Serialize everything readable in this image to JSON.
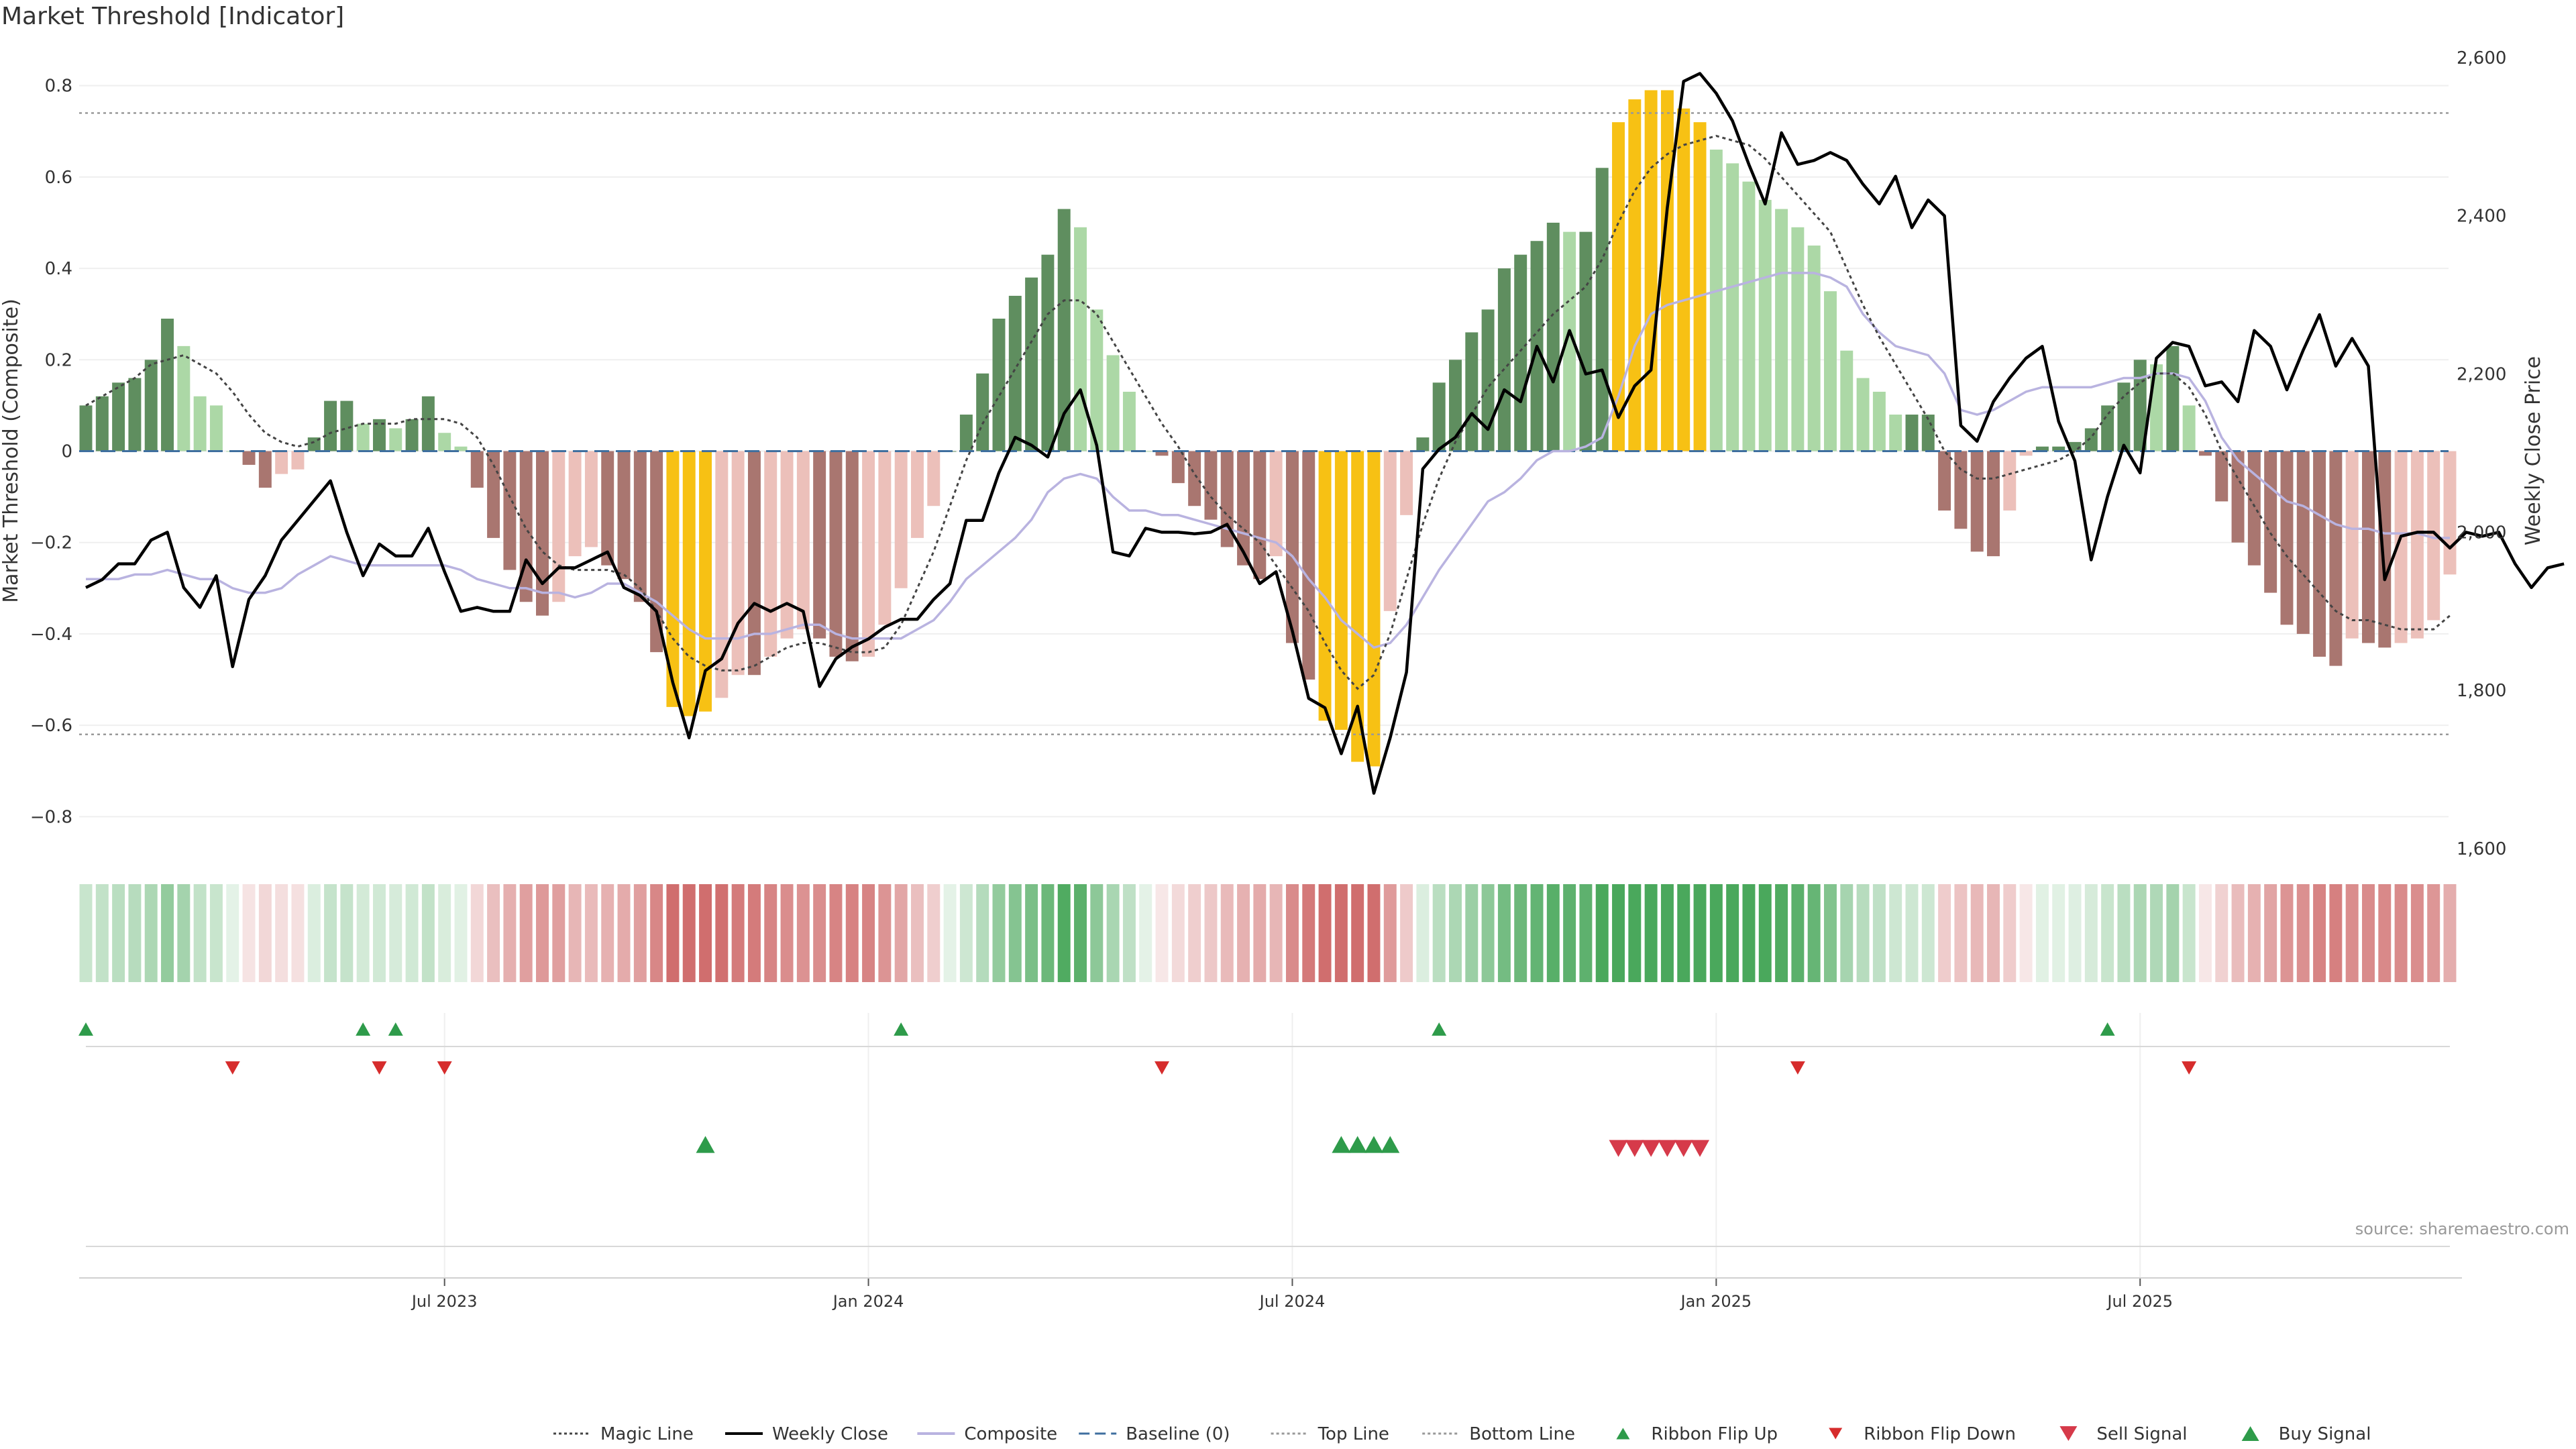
{
  "title": "Market Threshold [Indicator]",
  "source": "source: sharemaestro.com",
  "chart_data": {
    "type": "bar",
    "title": "Market Threshold [Indicator]",
    "ylabel_left": "Market Threshold (Composite)",
    "ylabel_right": "Weekly Close Price",
    "ylim_left": [
      -0.87,
      0.87
    ],
    "ylim_right": [
      1600,
      2605
    ],
    "yticks_left": [
      -0.8,
      -0.6,
      -0.4,
      -0.2,
      0,
      0.2,
      0.4,
      0.6,
      0.8
    ],
    "yticks_left_labels": [
      "−0.8",
      "−0.6",
      "−0.4",
      "−0.2",
      "0",
      "0.2",
      "0.4",
      "0.6",
      "0.8"
    ],
    "yticks_right": [
      1600,
      1800,
      2000,
      2200,
      2400,
      2600
    ],
    "yticks_right_labels": [
      "1,600",
      "1,800",
      "2,000",
      "2,200",
      "2,400",
      "2,600"
    ],
    "xticks": [
      22,
      48,
      74,
      100,
      126
    ],
    "xtick_labels": [
      "Jul 2023",
      "Jan 2024",
      "Jul 2024",
      "Jan 2025",
      "Jul 2025"
    ],
    "top_line": 0.74,
    "bottom_line": -0.62,
    "composite": [
      0.1,
      0.12,
      0.15,
      0.16,
      0.2,
      0.29,
      0.23,
      0.12,
      0.1,
      0.0,
      -0.03,
      -0.08,
      -0.05,
      -0.04,
      0.03,
      0.11,
      0.11,
      0.06,
      0.07,
      0.05,
      0.07,
      0.12,
      0.04,
      0.01,
      -0.08,
      -0.19,
      -0.26,
      -0.33,
      -0.36,
      -0.33,
      -0.23,
      -0.21,
      -0.25,
      -0.28,
      -0.33,
      -0.44,
      -0.56,
      -0.58,
      -0.57,
      -0.54,
      -0.49,
      -0.49,
      -0.45,
      -0.41,
      -0.39,
      -0.41,
      -0.45,
      -0.46,
      -0.45,
      -0.38,
      -0.3,
      -0.19,
      -0.12,
      0.0,
      0.08,
      0.17,
      0.29,
      0.34,
      0.38,
      0.43,
      0.53,
      0.49,
      0.31,
      0.21,
      0.13,
      0.0,
      -0.01,
      -0.07,
      -0.12,
      -0.15,
      -0.21,
      -0.25,
      -0.28,
      -0.23,
      -0.42,
      -0.5,
      -0.59,
      -0.61,
      -0.68,
      -0.69,
      -0.35,
      -0.14,
      0.03,
      0.15,
      0.2,
      0.26,
      0.31,
      0.4,
      0.43,
      0.46,
      0.5,
      0.48,
      0.48,
      0.62,
      0.72,
      0.77,
      0.79,
      0.79,
      0.75,
      0.72,
      0.66,
      0.63,
      0.59,
      0.55,
      0.53,
      0.49,
      0.45,
      0.35,
      0.22,
      0.16,
      0.13,
      0.08,
      0.08,
      0.08,
      -0.13,
      -0.17,
      -0.22,
      -0.23,
      -0.13,
      -0.01,
      0.01,
      0.01,
      0.02,
      0.05,
      0.1,
      0.15,
      0.2,
      0.19,
      0.23,
      0.1,
      -0.01,
      -0.11,
      -0.2,
      -0.25,
      -0.31,
      -0.38,
      -0.4,
      -0.45,
      -0.47,
      -0.41,
      -0.42,
      -0.43,
      -0.42,
      -0.41,
      -0.37,
      -0.27
    ],
    "magic_line": [
      0.1,
      0.12,
      0.14,
      0.16,
      0.19,
      0.2,
      0.21,
      0.19,
      0.17,
      0.13,
      0.08,
      0.04,
      0.02,
      0.01,
      0.02,
      0.04,
      0.05,
      0.06,
      0.06,
      0.06,
      0.07,
      0.07,
      0.07,
      0.06,
      0.03,
      -0.03,
      -0.1,
      -0.17,
      -0.22,
      -0.25,
      -0.26,
      -0.26,
      -0.26,
      -0.27,
      -0.3,
      -0.35,
      -0.41,
      -0.45,
      -0.47,
      -0.48,
      -0.48,
      -0.47,
      -0.45,
      -0.43,
      -0.42,
      -0.42,
      -0.43,
      -0.44,
      -0.44,
      -0.43,
      -0.38,
      -0.3,
      -0.22,
      -0.12,
      -0.02,
      0.06,
      0.12,
      0.18,
      0.24,
      0.3,
      0.33,
      0.33,
      0.3,
      0.24,
      0.18,
      0.12,
      0.06,
      0.01,
      -0.05,
      -0.1,
      -0.14,
      -0.17,
      -0.2,
      -0.25,
      -0.3,
      -0.35,
      -0.42,
      -0.48,
      -0.52,
      -0.49,
      -0.4,
      -0.28,
      -0.16,
      -0.06,
      0.02,
      0.08,
      0.14,
      0.18,
      0.22,
      0.26,
      0.3,
      0.33,
      0.36,
      0.42,
      0.5,
      0.57,
      0.62,
      0.65,
      0.67,
      0.68,
      0.69,
      0.68,
      0.67,
      0.64,
      0.6,
      0.56,
      0.52,
      0.48,
      0.4,
      0.32,
      0.25,
      0.19,
      0.13,
      0.07,
      0.0,
      -0.04,
      -0.06,
      -0.06,
      -0.05,
      -0.04,
      -0.03,
      -0.02,
      0.0,
      0.03,
      0.08,
      0.12,
      0.15,
      0.17,
      0.17,
      0.14,
      0.08,
      0.0,
      -0.06,
      -0.12,
      -0.18,
      -0.23,
      -0.27,
      -0.31,
      -0.35,
      -0.37,
      -0.37,
      -0.38,
      -0.39,
      -0.39,
      -0.39,
      -0.36
    ],
    "composite_smooth": [
      -0.28,
      -0.28,
      -0.28,
      -0.27,
      -0.27,
      -0.26,
      -0.27,
      -0.28,
      -0.28,
      -0.3,
      -0.31,
      -0.31,
      -0.3,
      -0.27,
      -0.25,
      -0.23,
      -0.24,
      -0.25,
      -0.25,
      -0.25,
      -0.25,
      -0.25,
      -0.25,
      -0.26,
      -0.28,
      -0.29,
      -0.3,
      -0.3,
      -0.31,
      -0.31,
      -0.32,
      -0.31,
      -0.29,
      -0.29,
      -0.31,
      -0.33,
      -0.36,
      -0.39,
      -0.41,
      -0.41,
      -0.41,
      -0.4,
      -0.4,
      -0.39,
      -0.38,
      -0.38,
      -0.4,
      -0.41,
      -0.41,
      -0.41,
      -0.41,
      -0.39,
      -0.37,
      -0.33,
      -0.28,
      -0.25,
      -0.22,
      -0.19,
      -0.15,
      -0.09,
      -0.06,
      -0.05,
      -0.06,
      -0.1,
      -0.13,
      -0.13,
      -0.14,
      -0.14,
      -0.15,
      -0.16,
      -0.17,
      -0.18,
      -0.19,
      -0.2,
      -0.23,
      -0.28,
      -0.32,
      -0.37,
      -0.4,
      -0.43,
      -0.42,
      -0.38,
      -0.32,
      -0.26,
      -0.21,
      -0.16,
      -0.11,
      -0.09,
      -0.06,
      -0.02,
      0.0,
      0.0,
      0.01,
      0.03,
      0.12,
      0.23,
      0.3,
      0.32,
      0.33,
      0.34,
      0.35,
      0.36,
      0.37,
      0.38,
      0.39,
      0.39,
      0.39,
      0.38,
      0.36,
      0.3,
      0.26,
      0.23,
      0.22,
      0.21,
      0.17,
      0.09,
      0.08,
      0.09,
      0.11,
      0.13,
      0.14,
      0.14,
      0.14,
      0.14,
      0.15,
      0.16,
      0.16,
      0.17,
      0.17,
      0.16,
      0.11,
      0.03,
      -0.02,
      -0.05,
      -0.08,
      -0.11,
      -0.12,
      -0.14,
      -0.16,
      -0.17,
      -0.17,
      -0.18,
      -0.18,
      -0.18,
      -0.19,
      -0.19
    ],
    "weekly_close": [
      1930,
      1940,
      1960,
      1960,
      1990,
      2000,
      1930,
      1905,
      1945,
      1830,
      1915,
      1945,
      1990,
      2015,
      2040,
      2065,
      2000,
      1945,
      1985,
      1970,
      1970,
      2005,
      1950,
      1900,
      1905,
      1900,
      1900,
      1965,
      1935,
      1955,
      1955,
      1965,
      1975,
      1930,
      1920,
      1900,
      1810,
      1740,
      1825,
      1840,
      1885,
      1910,
      1900,
      1910,
      1900,
      1805,
      1840,
      1855,
      1865,
      1880,
      1890,
      1890,
      1915,
      1935,
      2015,
      2015,
      2075,
      2120,
      2110,
      2095,
      2150,
      2180,
      2110,
      1975,
      1970,
      2005,
      2000,
      2000,
      1998,
      2000,
      2010,
      1975,
      1935,
      1950,
      1875,
      1790,
      1778,
      1720,
      1780,
      1670,
      1740,
      1823,
      2080,
      2105,
      2120,
      2150,
      2130,
      2180,
      2165,
      2235,
      2190,
      2255,
      2200,
      2205,
      2145,
      2185,
      2205,
      2410,
      2570,
      2580,
      2555,
      2520,
      2465,
      2415,
      2505,
      2465,
      2470,
      2480,
      2470,
      2440,
      2415,
      2450,
      2385,
      2420,
      2400,
      2135,
      2115,
      2165,
      2195,
      2220,
      2235,
      2140,
      2090,
      1965,
      2045,
      2110,
      2075,
      2220,
      2240,
      2235,
      2185,
      2190,
      2165,
      2255,
      2235,
      2180,
      2230,
      2275,
      2210,
      2245,
      2210,
      1940,
      1995,
      2000,
      2000,
      1980,
      2000,
      1995,
      2000,
      1960,
      1930,
      1955,
      1960
    ],
    "signal_row1": [
      {
        "x": 0,
        "type": "ribbon_flip_up"
      },
      {
        "x": 9,
        "type": "ribbon_flip_down"
      },
      {
        "x": 17,
        "type": "ribbon_flip_up"
      },
      {
        "x": 18,
        "type": "ribbon_flip_down"
      },
      {
        "x": 19,
        "type": "ribbon_flip_up"
      },
      {
        "x": 22,
        "type": "ribbon_flip_down"
      },
      {
        "x": 50,
        "type": "ribbon_flip_up"
      },
      {
        "x": 66,
        "type": "ribbon_flip_down"
      },
      {
        "x": 83,
        "type": "ribbon_flip_up"
      },
      {
        "x": 105,
        "type": "ribbon_flip_down"
      },
      {
        "x": 124,
        "type": "ribbon_flip_up"
      },
      {
        "x": 129,
        "type": "ribbon_flip_down"
      }
    ],
    "signal_row2": [
      {
        "x": 38,
        "type": "buy"
      },
      {
        "x": 77,
        "type": "buy"
      },
      {
        "x": 78,
        "type": "buy"
      },
      {
        "x": 79,
        "type": "buy"
      },
      {
        "x": 80,
        "type": "buy"
      },
      {
        "x": 94,
        "type": "sell"
      },
      {
        "x": 95,
        "type": "sell"
      },
      {
        "x": 96,
        "type": "sell"
      },
      {
        "x": 97,
        "type": "sell"
      },
      {
        "x": 98,
        "type": "sell"
      },
      {
        "x": 99,
        "type": "sell"
      }
    ],
    "legend": [
      {
        "label": "Magic Line",
        "kind": "dotted",
        "color": "#444444"
      },
      {
        "label": "Weekly Close",
        "kind": "solid",
        "color": "#000000"
      },
      {
        "label": "Composite",
        "kind": "solid",
        "color": "#b9b3e0"
      },
      {
        "label": "Baseline (0)",
        "kind": "dashed",
        "color": "#3f6f9f"
      },
      {
        "label": "Top Line",
        "kind": "dotted",
        "color": "#999999"
      },
      {
        "label": "Bottom Line",
        "kind": "dotted",
        "color": "#999999"
      },
      {
        "label": "Ribbon Flip Up",
        "kind": "tri-up",
        "color": "#2e9b4a"
      },
      {
        "label": "Ribbon Flip Down",
        "kind": "tri-down",
        "color": "#d62c2c"
      },
      {
        "label": "Sell Signal",
        "kind": "tri-down-large",
        "color": "#d63a4a"
      },
      {
        "label": "Buy Signal",
        "kind": "tri-up-large",
        "color": "#2e9b4a"
      }
    ],
    "grid": true,
    "legend_position": "bottom-center"
  },
  "colors": {
    "pos_dark": "#5f8e5f",
    "pos_light": "#acd8a6",
    "neg_dark": "#a97670",
    "neg_light": "#ecc0ba",
    "extreme": "#f7c114",
    "ribbon_pos": "#4aa85c",
    "ribbon_neg": "#d06e6e"
  }
}
